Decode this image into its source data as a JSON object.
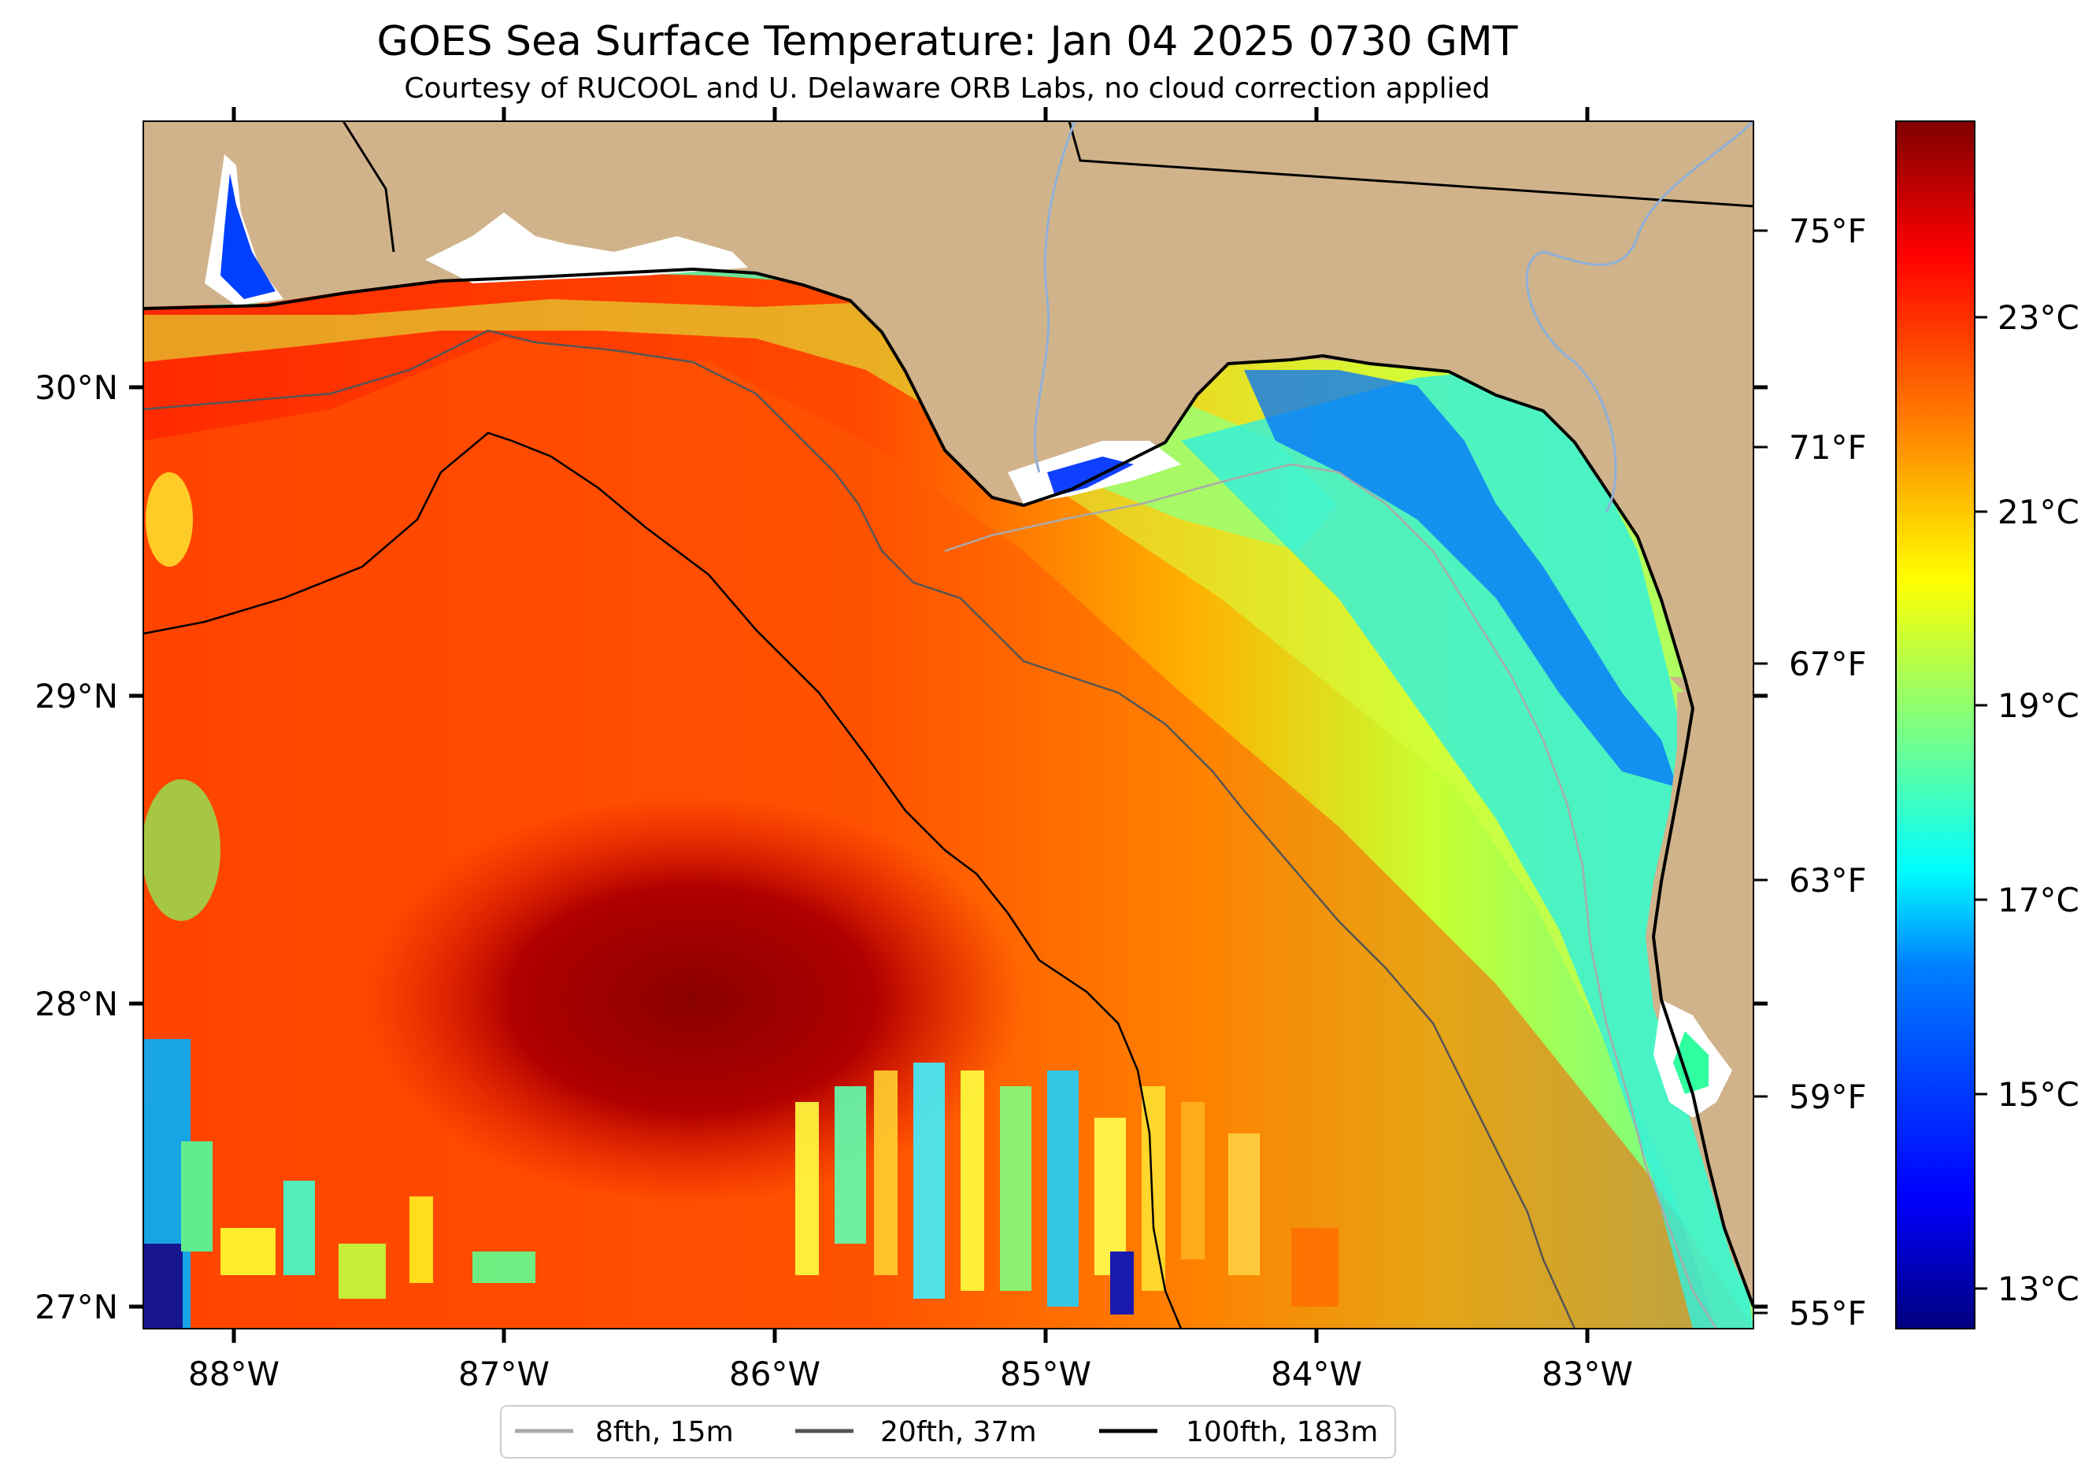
{
  "title": "GOES Sea Surface Temperature: Jan 04 2025 0730 GMT",
  "subtitle": "Courtesy of RUCOOL and U. Delaware ORB Labs, no cloud correction applied",
  "map": {
    "lon_labels": [
      "88°W",
      "87°W",
      "86°W",
      "85°W",
      "84°W",
      "83°W"
    ],
    "lat_labels": [
      "30°N",
      "29°N",
      "28°N",
      "27°N"
    ],
    "right_f_labels": [
      "75°F",
      "71°F",
      "67°F",
      "63°F",
      "59°F",
      "55°F"
    ],
    "land_color": "#d0b38b",
    "coast_color": "#000000",
    "river_color": "#8fb0d8"
  },
  "colorbar": {
    "labels": [
      "23°C",
      "21°C",
      "19°C",
      "17°C",
      "15°C",
      "13°C"
    ],
    "colormap": "jet",
    "colors": [
      "#00007f",
      "#0000ff",
      "#007fff",
      "#00ffff",
      "#7fff7f",
      "#ffff00",
      "#ff7f00",
      "#ff0000",
      "#7f0000"
    ]
  },
  "legend": {
    "items": [
      {
        "label": "8fth, 15m",
        "color": "#aaaaaa"
      },
      {
        "label": "20fth, 37m",
        "color": "#555555"
      },
      {
        "label": "100fth, 183m",
        "color": "#000000"
      }
    ]
  }
}
